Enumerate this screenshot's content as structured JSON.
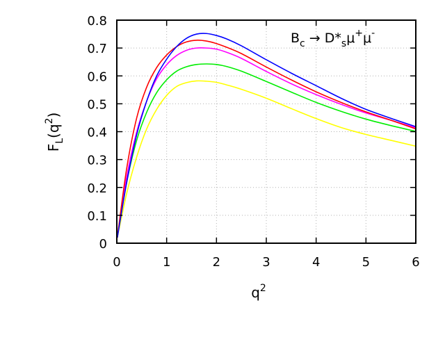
{
  "chart_data": {
    "type": "line",
    "title": "",
    "xlabel_base": "q",
    "xlabel_sup": "2",
    "ylabel_main": "F",
    "ylabel_sub": "L",
    "ylabel_paren_open": "(q",
    "ylabel_sup": "2",
    "ylabel_paren_close": ")",
    "xlim": [
      0,
      6
    ],
    "ylim": [
      0,
      0.8
    ],
    "xticks": [
      0,
      1,
      2,
      3,
      4,
      5,
      6
    ],
    "xtick_labels": [
      "0",
      "1",
      "2",
      "3",
      "4",
      "5",
      "6"
    ],
    "yticks": [
      0,
      0.1,
      0.2,
      0.3,
      0.4,
      0.5,
      0.6,
      0.7,
      0.8
    ],
    "ytick_labels": [
      "0",
      "0.1",
      "0.2",
      "0.3",
      "0.4",
      "0.5",
      "0.6",
      "0.7",
      "0.8"
    ],
    "grid": true,
    "annotation": {
      "B": "B",
      "c": "c",
      "arrow": " → D*",
      "s": "s",
      "mu1": "μ",
      "plus": "+",
      "mu2": "μ",
      "minus": "-"
    },
    "series": [
      {
        "color": "#ffff00",
        "x": [
          0.01,
          0.2,
          0.4,
          0.6,
          0.8,
          1.0,
          1.2,
          1.4,
          1.6,
          1.8,
          2.0,
          2.2,
          2.5,
          3.0,
          3.5,
          4.0,
          4.5,
          5.0,
          5.5,
          6.0
        ],
        "y": [
          0.02,
          0.18,
          0.31,
          0.41,
          0.48,
          0.53,
          0.562,
          0.576,
          0.582,
          0.581,
          0.577,
          0.568,
          0.552,
          0.52,
          0.483,
          0.447,
          0.415,
          0.39,
          0.369,
          0.348
        ]
      },
      {
        "color": "#00ee00",
        "x": [
          0.01,
          0.2,
          0.4,
          0.6,
          0.8,
          1.0,
          1.2,
          1.4,
          1.6,
          1.8,
          2.0,
          2.2,
          2.5,
          3.0,
          3.5,
          4.0,
          4.5,
          5.0,
          5.5,
          6.0
        ],
        "y": [
          0.02,
          0.22,
          0.37,
          0.47,
          0.54,
          0.586,
          0.617,
          0.633,
          0.641,
          0.643,
          0.641,
          0.634,
          0.617,
          0.58,
          0.542,
          0.505,
          0.473,
          0.445,
          0.422,
          0.401
        ]
      },
      {
        "color": "#ff00ff",
        "x": [
          0.01,
          0.2,
          0.4,
          0.6,
          0.8,
          1.0,
          1.2,
          1.4,
          1.6,
          1.8,
          2.0,
          2.2,
          2.5,
          3.0,
          3.5,
          4.0,
          4.5,
          5.0,
          5.5,
          6.0
        ],
        "y": [
          0.02,
          0.24,
          0.4,
          0.51,
          0.59,
          0.64,
          0.673,
          0.692,
          0.7,
          0.7,
          0.696,
          0.685,
          0.663,
          0.616,
          0.572,
          0.533,
          0.498,
          0.467,
          0.441,
          0.414
        ]
      },
      {
        "color": "#ff0000",
        "x": [
          0.01,
          0.2,
          0.4,
          0.6,
          0.8,
          1.0,
          1.2,
          1.4,
          1.6,
          1.8,
          2.0,
          2.2,
          2.5,
          3.0,
          3.5,
          4.0,
          4.5,
          5.0,
          5.5,
          6.0
        ],
        "y": [
          0.02,
          0.27,
          0.45,
          0.56,
          0.63,
          0.675,
          0.705,
          0.722,
          0.728,
          0.725,
          0.716,
          0.703,
          0.68,
          0.632,
          0.586,
          0.543,
          0.505,
          0.471,
          0.441,
          0.41
        ]
      },
      {
        "color": "#0000ff",
        "x": [
          0.01,
          0.2,
          0.4,
          0.6,
          0.8,
          1.0,
          1.2,
          1.4,
          1.6,
          1.8,
          2.0,
          2.2,
          2.5,
          3.0,
          3.5,
          4.0,
          4.5,
          5.0,
          5.5,
          6.0
        ],
        "y": [
          0.02,
          0.22,
          0.39,
          0.51,
          0.6,
          0.66,
          0.705,
          0.735,
          0.75,
          0.752,
          0.745,
          0.733,
          0.708,
          0.658,
          0.61,
          0.565,
          0.52,
          0.48,
          0.448,
          0.418
        ]
      }
    ]
  }
}
